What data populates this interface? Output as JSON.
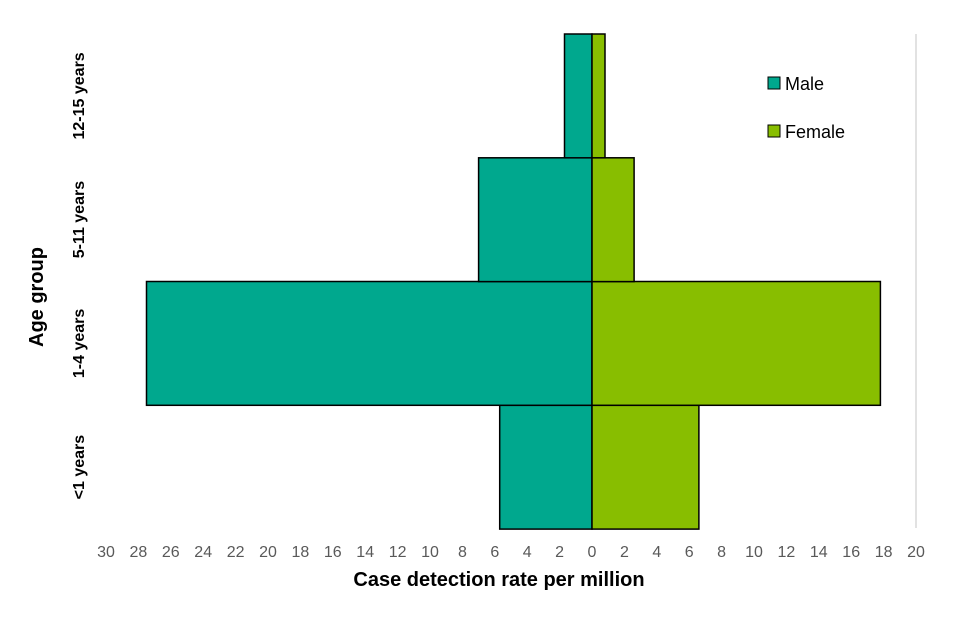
{
  "chart_data": {
    "type": "bar",
    "orientation": "horizontal",
    "variant": "population-pyramid",
    "title": "",
    "xlabel": "Case detection rate per million",
    "ylabel": "Age group",
    "categories": [
      "<1 years",
      "1-4 years",
      "5-11 years",
      "12-15 years"
    ],
    "series": [
      {
        "name": "Male",
        "values": [
          5.7,
          27.5,
          7.0,
          1.7
        ],
        "direction": "left",
        "color": "#00A88E"
      },
      {
        "name": "Female",
        "values": [
          6.6,
          17.8,
          2.6,
          0.8
        ],
        "direction": "right",
        "color": "#88BE00"
      }
    ],
    "xlim_left": 30,
    "xlim_right": 20,
    "x_ticks": [
      {
        "value": -30,
        "label": "30"
      },
      {
        "value": -28,
        "label": "28"
      },
      {
        "value": -26,
        "label": "26"
      },
      {
        "value": -24,
        "label": "24"
      },
      {
        "value": -22,
        "label": "22"
      },
      {
        "value": -20,
        "label": "20"
      },
      {
        "value": -18,
        "label": "18"
      },
      {
        "value": -16,
        "label": "16"
      },
      {
        "value": -14,
        "label": "14"
      },
      {
        "value": -12,
        "label": "12"
      },
      {
        "value": -10,
        "label": "10"
      },
      {
        "value": -8,
        "label": "8"
      },
      {
        "value": -6,
        "label": "6"
      },
      {
        "value": -4,
        "label": "4"
      },
      {
        "value": -2,
        "label": "2"
      },
      {
        "value": 0,
        "label": "0"
      },
      {
        "value": 2,
        "label": "2"
      },
      {
        "value": 4,
        "label": "4"
      },
      {
        "value": 6,
        "label": "6"
      },
      {
        "value": 8,
        "label": "8"
      },
      {
        "value": 10,
        "label": "10"
      },
      {
        "value": 12,
        "label": "12"
      },
      {
        "value": 14,
        "label": "14"
      },
      {
        "value": 16,
        "label": "16"
      },
      {
        "value": 18,
        "label": "18"
      },
      {
        "value": 20,
        "label": "20"
      }
    ],
    "legend": {
      "position": "top-right",
      "entries": [
        "Male",
        "Female"
      ]
    },
    "grid": false
  }
}
